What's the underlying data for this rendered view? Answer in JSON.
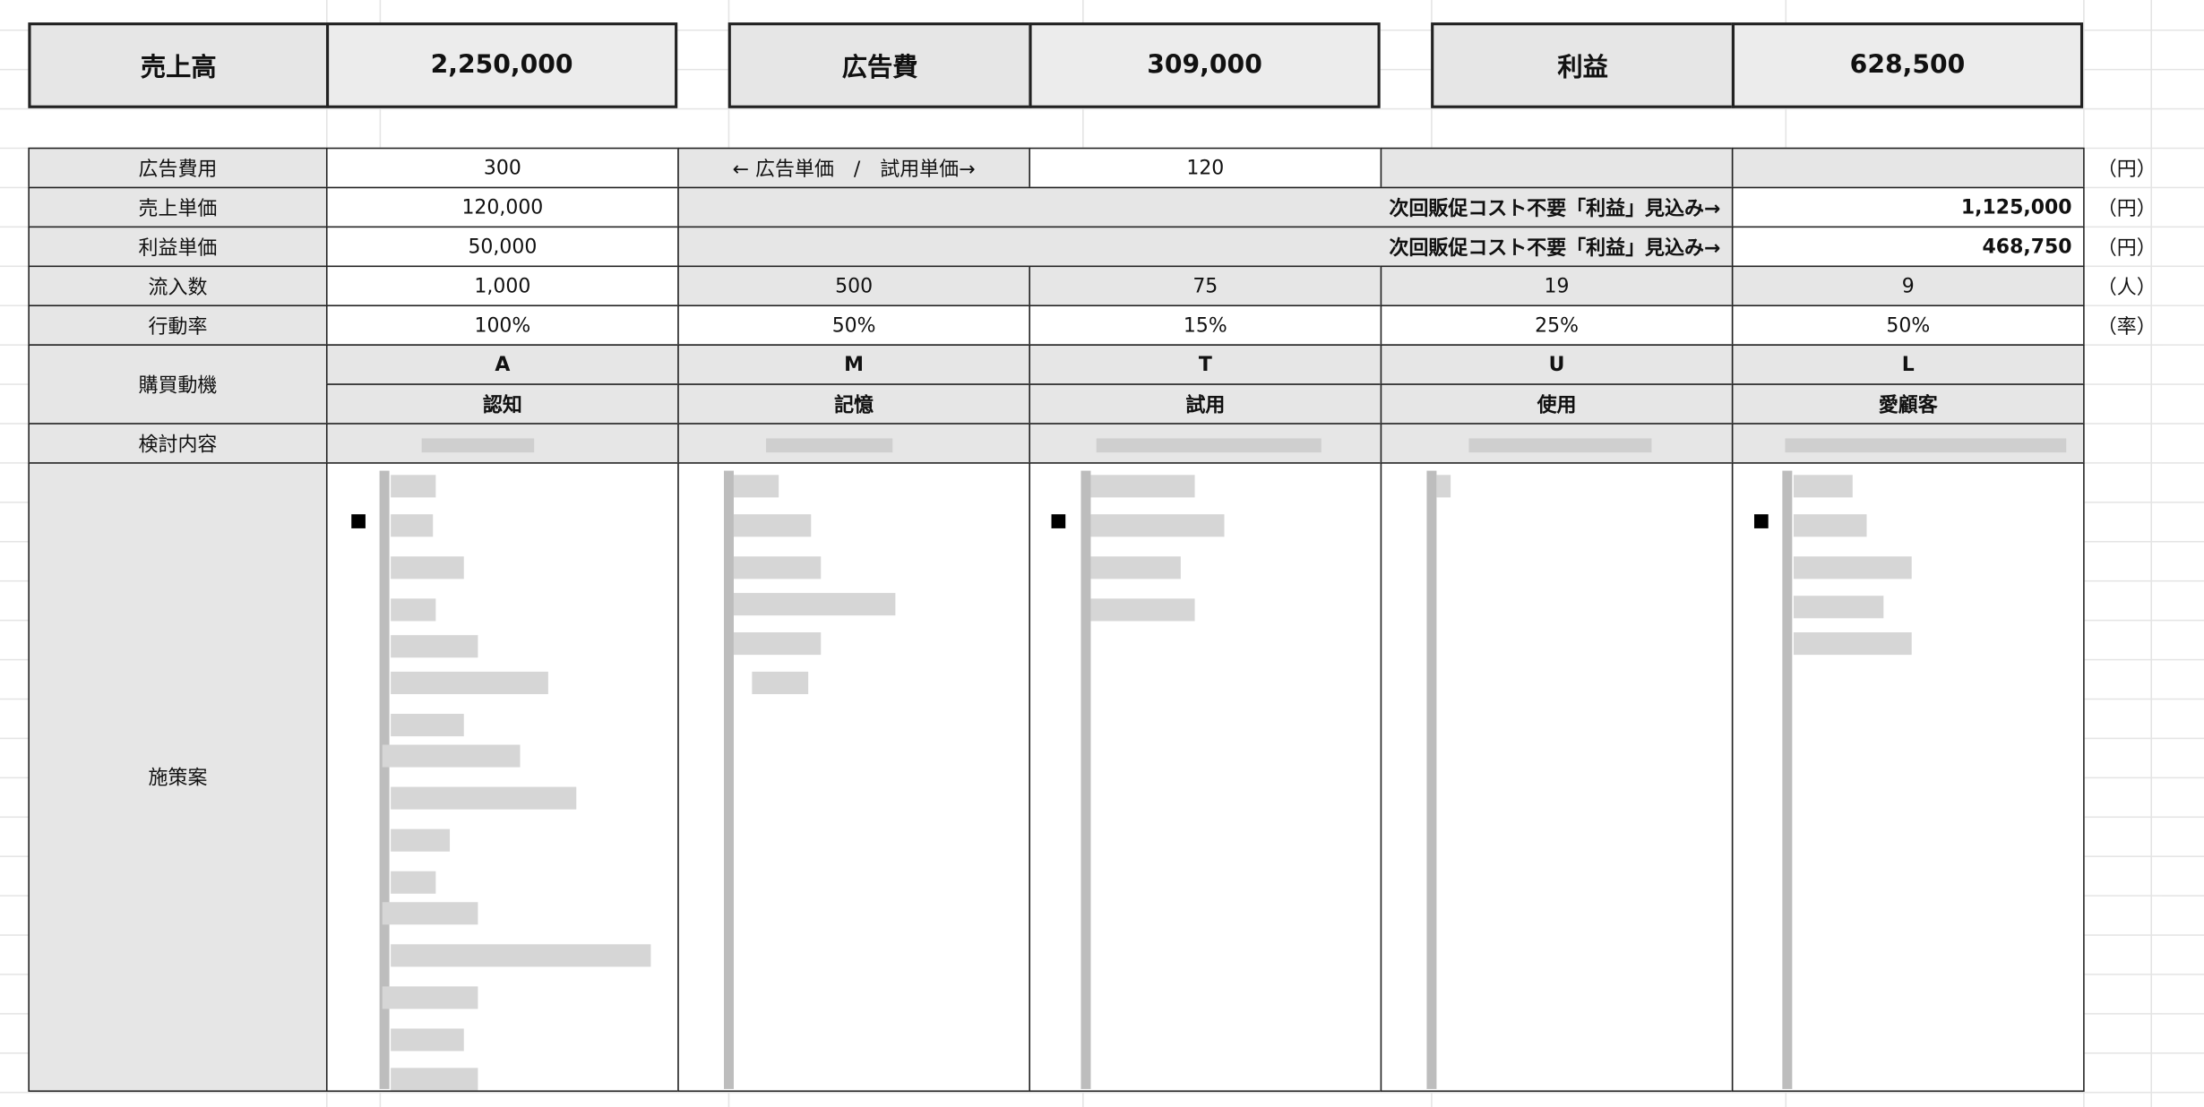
{
  "summary": [
    {
      "label": "売上高",
      "value": "2,250,000"
    },
    {
      "label": "広告費",
      "value": "309,000"
    },
    {
      "label": "利益",
      "value": "628,500"
    }
  ],
  "table": {
    "rows": [
      {
        "label": "広告費用",
        "cells": [
          "300",
          "← 広告単価　/　試用単価→",
          "120"
        ],
        "unit": "（円）"
      },
      {
        "label": "売上単価",
        "cells": [
          "120,000",
          "次回販促コスト不要「利益」見込み→",
          "1,125,000"
        ],
        "unit": "（円）"
      },
      {
        "label": "利益単価",
        "cells": [
          "50,000",
          "次回販促コスト不要「利益」見込み→",
          "468,750"
        ],
        "unit": "（円）"
      },
      {
        "label": "流入数",
        "cells": [
          "1,000",
          "500",
          "75",
          "19",
          "9"
        ],
        "unit": "（人）"
      },
      {
        "label": "行動率",
        "cells": [
          "100%",
          "50%",
          "15%",
          "25%",
          "50%"
        ],
        "unit": "（率）"
      }
    ],
    "motive": {
      "label": "購買動機",
      "letters": [
        "A",
        "M",
        "T",
        "U",
        "L"
      ],
      "stages": [
        "認知",
        "記憶",
        "試用",
        "使用",
        "愛顧客"
      ]
    },
    "review_label": "検討内容",
    "plan_label": "施策案"
  }
}
